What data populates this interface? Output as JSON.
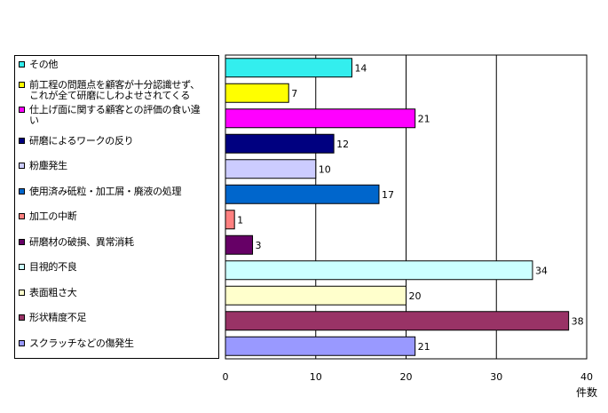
{
  "chart_data": {
    "type": "bar",
    "orientation": "horizontal",
    "categories": [
      "その他",
      "前工程の問題点を顧客が十分認識せず、\nこれが全て研磨にしわよせされてくる",
      "仕上げ面に関する顧客との評価の食い違\nい",
      "研磨によるワークの反り",
      "粉塵発生",
      "使用済み砥粒・加工屑・廃液の処理",
      "加工の中断",
      "研磨材の破損、異常消耗",
      "目視的不良",
      "表面粗さ大",
      "形状精度不足",
      "スクラッチなどの傷発生"
    ],
    "values": [
      14,
      7,
      21,
      12,
      10,
      17,
      1,
      3,
      34,
      20,
      38,
      21
    ],
    "colors": [
      "#33EEEE",
      "#FFFF00",
      "#FF00FF",
      "#000080",
      "#CCCCFF",
      "#0066CC",
      "#FF8080",
      "#660066",
      "#CCFFFF",
      "#FFFFCC",
      "#993366",
      "#9999FF"
    ],
    "xlim": [
      0,
      40
    ],
    "xticks": [
      0,
      10,
      20,
      30,
      40
    ],
    "xticklabels": [
      "0",
      "10",
      "20",
      "30",
      "40"
    ],
    "xlabel": "件数",
    "grid": true,
    "legend": "left"
  }
}
